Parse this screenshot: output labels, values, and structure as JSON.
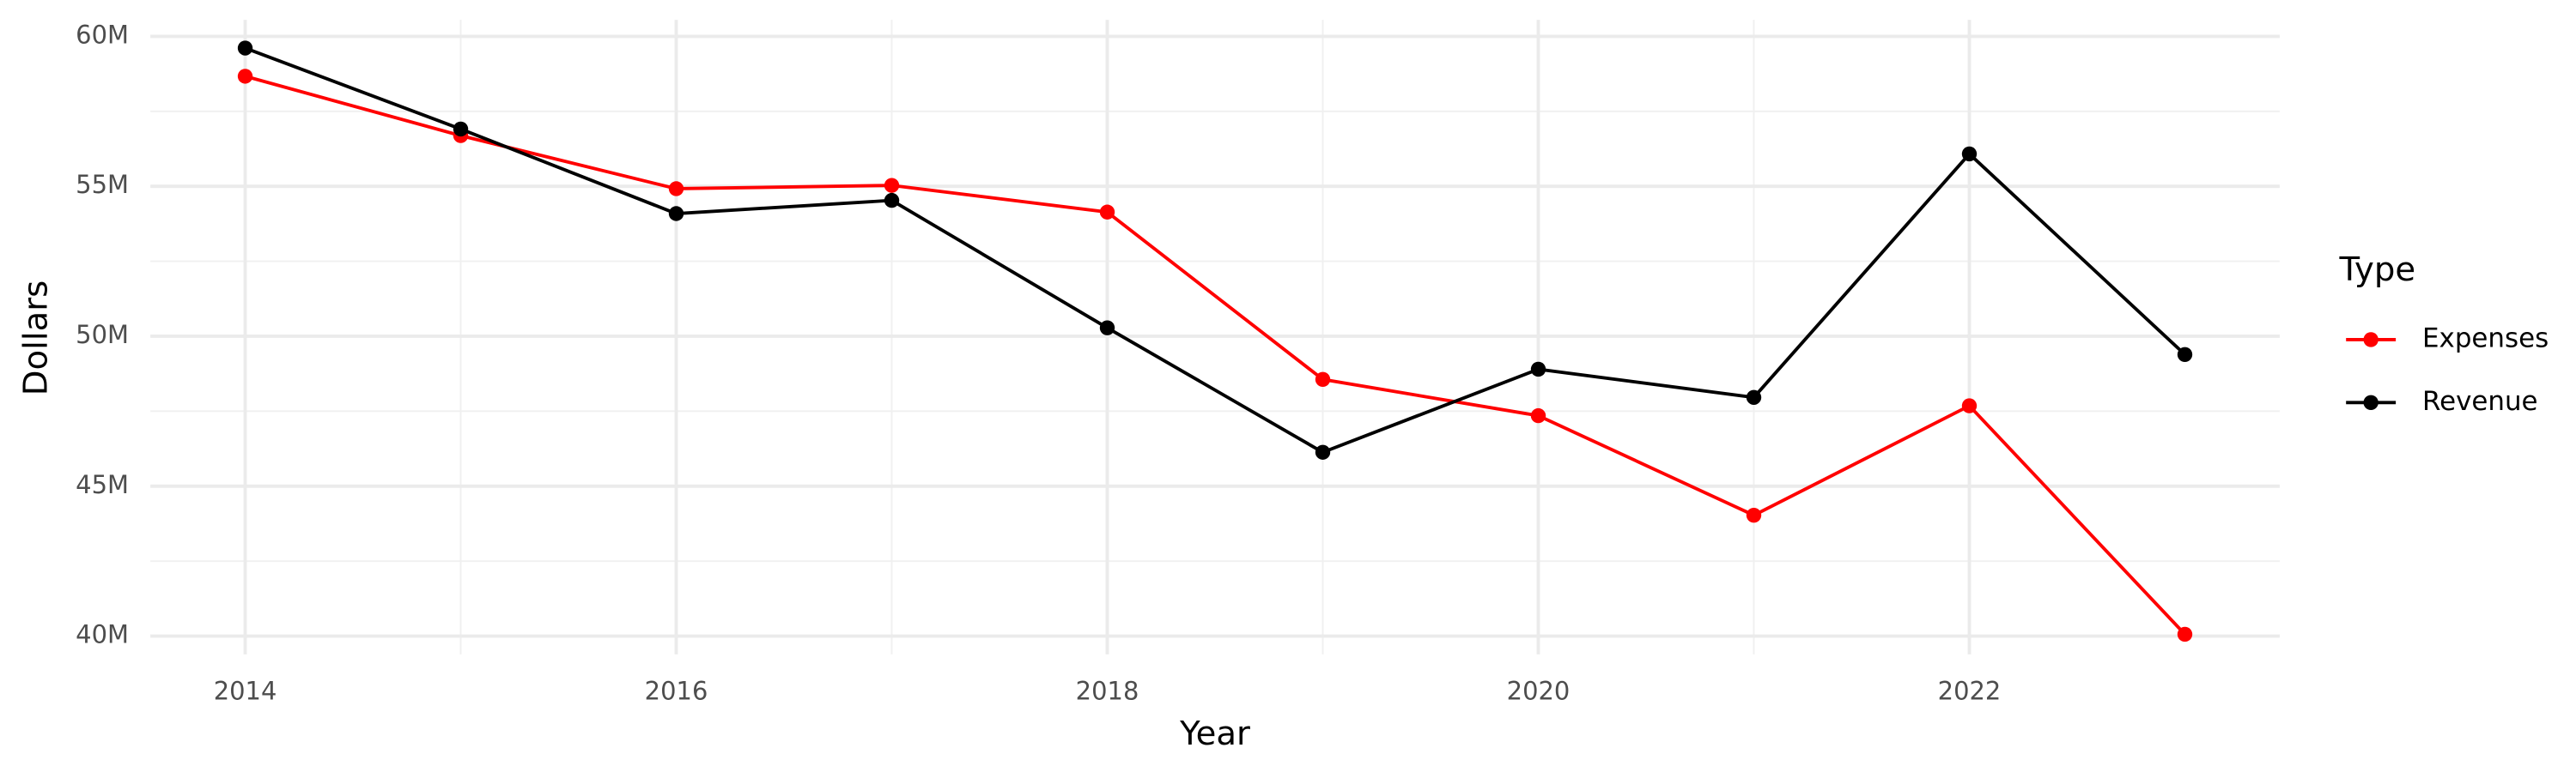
{
  "chart_data": {
    "type": "line",
    "x_label": "Year",
    "y_label": "Dollars",
    "legend_title": "Type",
    "x": [
      2014,
      2015,
      2016,
      2017,
      2018,
      2019,
      2020,
      2021,
      2022,
      2023
    ],
    "series": [
      {
        "name": "Expenses",
        "color": "#ff0000",
        "values": [
          58670000,
          56690000,
          54920000,
          55030000,
          54140000,
          48560000,
          47350000,
          44030000,
          47680000,
          40060000
        ]
      },
      {
        "name": "Revenue",
        "color": "#000000",
        "values": [
          59610000,
          56910000,
          54090000,
          54530000,
          50280000,
          46130000,
          48900000,
          47960000,
          56080000,
          49390000
        ]
      }
    ],
    "xlim": [
      2013.56,
      2023.44
    ],
    "xticks": [
      2014,
      2016,
      2018,
      2020,
      2022
    ],
    "ylim": [
      39390000,
      60550000
    ],
    "yticks": [
      {
        "value": 40000000,
        "label": "40M"
      },
      {
        "value": 45000000,
        "label": "45M"
      },
      {
        "value": 50000000,
        "label": "50M"
      },
      {
        "value": 55000000,
        "label": "55M"
      },
      {
        "value": 60000000,
        "label": "60M"
      }
    ],
    "grid": true,
    "legend": "right"
  }
}
